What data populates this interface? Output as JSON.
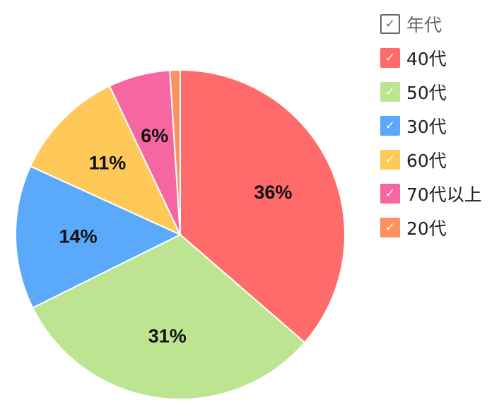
{
  "chart_data": {
    "type": "pie",
    "legend_title": "年代",
    "legend_position": "right",
    "categories": [
      "40代",
      "50代",
      "30代",
      "60代",
      "70代以上",
      "20代"
    ],
    "values": [
      36,
      31,
      14,
      11,
      6,
      1
    ],
    "labels": [
      "36%",
      "31%",
      "14%",
      "11%",
      "6%",
      ""
    ],
    "colors": [
      "#ff6b6b",
      "#bde591",
      "#5aa9fa",
      "#ffc95a",
      "#f667a2",
      "#fc9060"
    ],
    "checkmark": "✓"
  }
}
